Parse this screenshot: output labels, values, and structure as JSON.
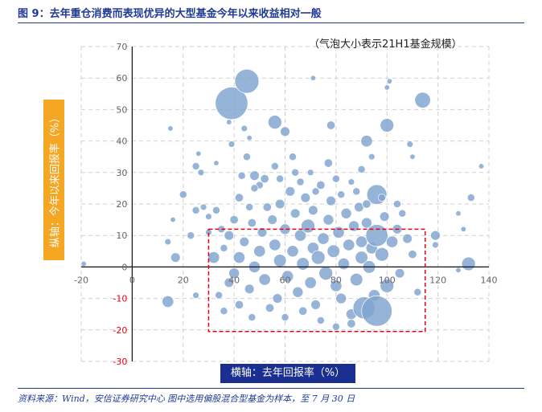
{
  "title": "图 9：去年重仓消费而表现优异的大型基金今年以来收益相对一般",
  "source": "资料来源：Wind，安信证券研究中心    图中选用偏股混合型基金为样本，至 7 月 30 日",
  "colors": {
    "title": "#1f3a93",
    "bubble": "#7fa3cf",
    "highlight_box": "#e60012",
    "ylabel_bg": "#f5a623",
    "xlabel_bg": "#1a2f8f",
    "negative_tick": "#e60012"
  },
  "chart_data": {
    "type": "scatter",
    "note": "（气泡大小表示21H1基金规模）",
    "xlabel": "横轴：去年回报率（%）",
    "ylabel": "纵轴：今年以来回报率（%）",
    "xlim": [
      -20,
      140
    ],
    "ylim": [
      -30,
      70
    ],
    "x_ticks": [
      -20,
      0,
      20,
      40,
      60,
      80,
      100,
      120,
      140
    ],
    "y_ticks": [
      -30,
      -20,
      -10,
      0,
      10,
      20,
      30,
      40,
      50,
      60,
      70
    ],
    "x_tick_labels": [
      "-20",
      "0",
      "20",
      "40",
      "60",
      "80",
      "100",
      "120",
      "140"
    ],
    "y_tick_labels": [
      "-30",
      "-20",
      "-10",
      "0",
      "10",
      "20",
      "30",
      "40",
      "50",
      "60",
      "70"
    ],
    "grid": true,
    "highlight_region": {
      "x": [
        30,
        115
      ],
      "y": [
        -20.5,
        12
      ]
    },
    "points": [
      {
        "x": -19,
        "y": 1,
        "size": 1
      },
      {
        "x": 15,
        "y": 44,
        "size": 1
      },
      {
        "x": 26,
        "y": 36,
        "size": 1
      },
      {
        "x": 25,
        "y": 32,
        "size": 2
      },
      {
        "x": 27,
        "y": 30,
        "size": 1.5
      },
      {
        "x": 33,
        "y": 33,
        "size": 1
      },
      {
        "x": 38,
        "y": 46,
        "size": 1
      },
      {
        "x": 39,
        "y": 52,
        "size": 14
      },
      {
        "x": 39,
        "y": 39,
        "size": 1.5
      },
      {
        "x": 44,
        "y": 44,
        "size": 1.5
      },
      {
        "x": 45,
        "y": 35,
        "size": 2
      },
      {
        "x": 46,
        "y": 41,
        "size": 1
      },
      {
        "x": 43,
        "y": 29,
        "size": 2
      },
      {
        "x": 48,
        "y": 29,
        "size": 3
      },
      {
        "x": 50,
        "y": 26,
        "size": 2
      },
      {
        "x": 45,
        "y": 59,
        "size": 10
      },
      {
        "x": 56,
        "y": 46,
        "size": 5
      },
      {
        "x": 60,
        "y": 43,
        "size": 3
      },
      {
        "x": 63,
        "y": 35,
        "size": 2
      },
      {
        "x": 71,
        "y": 60,
        "size": 1
      },
      {
        "x": 77,
        "y": 33,
        "size": 2.5
      },
      {
        "x": 78,
        "y": 45,
        "size": 2.5
      },
      {
        "x": 82,
        "y": 23,
        "size": 2
      },
      {
        "x": 86,
        "y": 27,
        "size": 1.5
      },
      {
        "x": 92,
        "y": 40,
        "size": 4
      },
      {
        "x": 96,
        "y": 23,
        "size": 8
      },
      {
        "x": 100,
        "y": 45,
        "size": 5
      },
      {
        "x": 101,
        "y": 59,
        "size": 1
      },
      {
        "x": 100,
        "y": 57,
        "size": 1
      },
      {
        "x": 114,
        "y": 53,
        "size": 6
      },
      {
        "x": 109,
        "y": 39,
        "size": 1.5
      },
      {
        "x": 110,
        "y": 35,
        "size": 1
      },
      {
        "x": 133,
        "y": 22,
        "size": 2
      },
      {
        "x": 137,
        "y": 32,
        "size": 1
      },
      {
        "x": 128,
        "y": 17,
        "size": 1
      },
      {
        "x": 130,
        "y": 12,
        "size": 1
      },
      {
        "x": 119,
        "y": 10,
        "size": 3
      },
      {
        "x": 119,
        "y": 7,
        "size": 1.5
      },
      {
        "x": 132,
        "y": 1,
        "size": 5
      },
      {
        "x": 128,
        "y": -1,
        "size": 1
      },
      {
        "x": 17,
        "y": 3,
        "size": 3
      },
      {
        "x": 14,
        "y": 8,
        "size": 1.5
      },
      {
        "x": 20,
        "y": 23,
        "size": 2
      },
      {
        "x": 16,
        "y": 15,
        "size": 1
      },
      {
        "x": 23,
        "y": 10,
        "size": 2
      },
      {
        "x": 25,
        "y": 18,
        "size": 2
      },
      {
        "x": 28,
        "y": 19,
        "size": 1.5
      },
      {
        "x": 30,
        "y": 16,
        "size": 1.5
      },
      {
        "x": 33,
        "y": 18,
        "size": 2
      },
      {
        "x": 30,
        "y": 11,
        "size": 1.5
      },
      {
        "x": 14,
        "y": -11,
        "size": 4
      },
      {
        "x": 25,
        "y": -9,
        "size": 1.5
      },
      {
        "x": 32,
        "y": 3,
        "size": 4
      },
      {
        "x": 36,
        "y": 6,
        "size": 2
      },
      {
        "x": 38,
        "y": 10,
        "size": 3
      },
      {
        "x": 38,
        "y": -5,
        "size": 3
      },
      {
        "x": 40,
        "y": -2,
        "size": 3.5
      },
      {
        "x": 42,
        "y": 3,
        "size": 4
      },
      {
        "x": 44,
        "y": 8,
        "size": 3
      },
      {
        "x": 46,
        "y": -7,
        "size": 3
      },
      {
        "x": 47,
        "y": 14,
        "size": 2.5
      },
      {
        "x": 48,
        "y": 0,
        "size": 4
      },
      {
        "x": 50,
        "y": 5,
        "size": 4
      },
      {
        "x": 51,
        "y": 11,
        "size": 3
      },
      {
        "x": 52,
        "y": -4,
        "size": 4
      },
      {
        "x": 53,
        "y": 19,
        "size": 2.5
      },
      {
        "x": 55,
        "y": 15,
        "size": 3
      },
      {
        "x": 56,
        "y": 7,
        "size": 4
      },
      {
        "x": 57,
        "y": -10,
        "size": 3
      },
      {
        "x": 58,
        "y": 2,
        "size": 4.5
      },
      {
        "x": 58,
        "y": 20,
        "size": 3
      },
      {
        "x": 60,
        "y": 12,
        "size": 3.5
      },
      {
        "x": 61,
        "y": -3,
        "size": 4
      },
      {
        "x": 62,
        "y": 24,
        "size": 3
      },
      {
        "x": 63,
        "y": 5,
        "size": 4
      },
      {
        "x": 64,
        "y": 17,
        "size": 3
      },
      {
        "x": 65,
        "y": -8,
        "size": 3.5
      },
      {
        "x": 66,
        "y": 10,
        "size": 4
      },
      {
        "x": 66,
        "y": 27,
        "size": 2
      },
      {
        "x": 67,
        "y": 1,
        "size": 4.5
      },
      {
        "x": 68,
        "y": 22,
        "size": 3
      },
      {
        "x": 69,
        "y": 13,
        "size": 5
      },
      {
        "x": 70,
        "y": -5,
        "size": 4
      },
      {
        "x": 71,
        "y": 6,
        "size": 4
      },
      {
        "x": 71,
        "y": 18,
        "size": 3
      },
      {
        "x": 72,
        "y": -12,
        "size": 3
      },
      {
        "x": 73,
        "y": 3,
        "size": 5
      },
      {
        "x": 74,
        "y": 26,
        "size": 2.5
      },
      {
        "x": 75,
        "y": 9,
        "size": 4
      },
      {
        "x": 76,
        "y": -2,
        "size": 5
      },
      {
        "x": 77,
        "y": 15,
        "size": 3.5
      },
      {
        "x": 78,
        "y": 21,
        "size": 3
      },
      {
        "x": 79,
        "y": 5,
        "size": 4.5
      },
      {
        "x": 80,
        "y": -6,
        "size": 4
      },
      {
        "x": 81,
        "y": 11,
        "size": 4
      },
      {
        "x": 82,
        "y": -10,
        "size": 3.5
      },
      {
        "x": 83,
        "y": 1,
        "size": 4
      },
      {
        "x": 84,
        "y": 17,
        "size": 3.5
      },
      {
        "x": 85,
        "y": 7,
        "size": 4
      },
      {
        "x": 86,
        "y": -15,
        "size": 3.5
      },
      {
        "x": 87,
        "y": 13,
        "size": 3.5
      },
      {
        "x": 88,
        "y": -4,
        "size": 4.5
      },
      {
        "x": 89,
        "y": 19,
        "size": 3
      },
      {
        "x": 90,
        "y": 3,
        "size": 4.5
      },
      {
        "x": 90,
        "y": 8,
        "size": 4
      },
      {
        "x": 91,
        "y": -13,
        "size": 9
      },
      {
        "x": 92,
        "y": 14,
        "size": 3.5
      },
      {
        "x": 93,
        "y": 0,
        "size": 4.5
      },
      {
        "x": 94,
        "y": 6,
        "size": 4
      },
      {
        "x": 95,
        "y": -9,
        "size": 4
      },
      {
        "x": 96,
        "y": 10,
        "size": 9
      },
      {
        "x": 96,
        "y": -14,
        "size": 13
      },
      {
        "x": 98,
        "y": 4,
        "size": 5
      },
      {
        "x": 99,
        "y": 16,
        "size": 3
      },
      {
        "x": 100,
        "y": -6,
        "size": 5
      },
      {
        "x": 102,
        "y": 8,
        "size": 4
      },
      {
        "x": 104,
        "y": 12,
        "size": 3
      },
      {
        "x": 105,
        "y": -2,
        "size": 3
      },
      {
        "x": 108,
        "y": 9,
        "size": 3
      },
      {
        "x": 110,
        "y": 4,
        "size": 2.5
      },
      {
        "x": 112,
        "y": -8,
        "size": 2
      },
      {
        "x": 34,
        "y": -9,
        "size": 2
      },
      {
        "x": 36,
        "y": -14,
        "size": 2
      },
      {
        "x": 42,
        "y": -12,
        "size": 2.5
      },
      {
        "x": 47,
        "y": -16,
        "size": 2
      },
      {
        "x": 54,
        "y": -13,
        "size": 2.5
      },
      {
        "x": 60,
        "y": -16,
        "size": 2
      },
      {
        "x": 67,
        "y": -14,
        "size": 2.5
      },
      {
        "x": 74,
        "y": -17,
        "size": 2
      },
      {
        "x": 80,
        "y": -19,
        "size": 2
      },
      {
        "x": 86,
        "y": -18,
        "size": 2.5
      },
      {
        "x": 42,
        "y": 22,
        "size": 2.5
      },
      {
        "x": 46,
        "y": 19,
        "size": 2
      },
      {
        "x": 48,
        "y": 25,
        "size": 2
      },
      {
        "x": 52,
        "y": 28,
        "size": 2.5
      },
      {
        "x": 56,
        "y": 32,
        "size": 2
      },
      {
        "x": 58,
        "y": 28,
        "size": 2
      },
      {
        "x": 64,
        "y": 30,
        "size": 2
      },
      {
        "x": 70,
        "y": 30,
        "size": 1.5
      },
      {
        "x": 72,
        "y": 24,
        "size": 2
      },
      {
        "x": 80,
        "y": 28,
        "size": 2
      },
      {
        "x": 88,
        "y": 24,
        "size": 2
      },
      {
        "x": 90,
        "y": 31,
        "size": 2
      },
      {
        "x": 92,
        "y": 20,
        "size": 2.5
      },
      {
        "x": 94,
        "y": 35,
        "size": 1.5
      },
      {
        "x": 98,
        "y": 22,
        "size": 2
      },
      {
        "x": 104,
        "y": 20,
        "size": 2
      },
      {
        "x": 106,
        "y": 17,
        "size": 2
      },
      {
        "x": 40,
        "y": 15,
        "size": 2.5
      },
      {
        "x": 35,
        "y": 12,
        "size": 2
      }
    ]
  }
}
